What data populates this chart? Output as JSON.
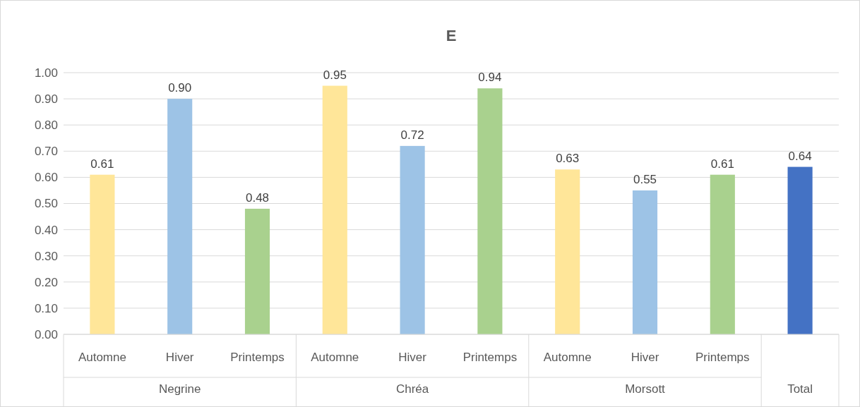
{
  "chart_data": {
    "type": "bar",
    "title": "E",
    "categories": [
      "Automne",
      "Hiver",
      "Printemps",
      "Automne",
      "Hiver",
      "Printemps",
      "Automne",
      "Hiver",
      "Printemps",
      null
    ],
    "values": [
      0.61,
      0.9,
      0.48,
      0.95,
      0.72,
      0.94,
      0.63,
      0.55,
      0.61,
      0.64
    ],
    "value_labels": [
      "0.61",
      "0.90",
      "0.48",
      "0.95",
      "0.72",
      "0.94",
      "0.63",
      "0.55",
      "0.61",
      "0.64"
    ],
    "colors": [
      "#ffe699",
      "#9dc3e6",
      "#a9d18e",
      "#ffe699",
      "#9dc3e6",
      "#a9d18e",
      "#ffe699",
      "#9dc3e6",
      "#a9d18e",
      "#4472c4"
    ],
    "annotations": [
      "Negrine",
      "Chréa",
      "Morsott",
      "Total"
    ],
    "ylim": [
      0,
      1
    ],
    "yticks": [
      {
        "value": 0,
        "label": "0.00"
      },
      {
        "value": 0.1,
        "label": "0.10"
      },
      {
        "value": 0.2,
        "label": "0.20"
      },
      {
        "value": 0.3,
        "label": "0.30"
      },
      {
        "value": 0.4,
        "label": "0.40"
      },
      {
        "value": 0.5,
        "label": "0.50"
      },
      {
        "value": 0.6,
        "label": "0.60"
      },
      {
        "value": 0.7,
        "label": "0.70"
      },
      {
        "value": 0.8,
        "label": "0.80"
      },
      {
        "value": 0.9,
        "label": "0.90"
      },
      {
        "value": 1,
        "label": "1.00"
      }
    ],
    "grid": "y"
  }
}
